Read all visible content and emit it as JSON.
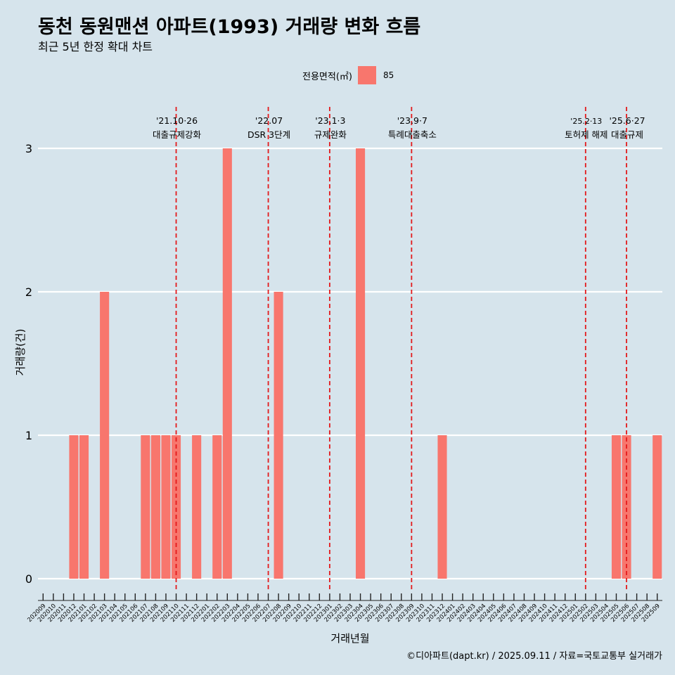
{
  "header": {
    "title": "동천 동원맨션 아파트(1993) 거래량 변화 흐름",
    "subtitle": "최근 5년 한정 확대 차트"
  },
  "legend": {
    "title": "전용면적(㎡)",
    "entry": "85"
  },
  "footer": {
    "credit": "©디아파트(dapt.kr) / 2025.09.11 / 자료=국토교통부 실거래가"
  },
  "colors": {
    "bar": "#f8766d",
    "event_line": "#e31a1c",
    "grid": "#ffffff",
    "background": "#d6e4ec"
  },
  "chart_data": {
    "type": "bar",
    "xlabel": "거래년월",
    "ylabel": "거래량(건)",
    "ylim": [
      0,
      3
    ],
    "yticks": [
      0,
      1,
      2,
      3
    ],
    "grid": true,
    "legend_position": "top",
    "categories": [
      "202009",
      "202010",
      "202011",
      "202012",
      "202101",
      "202102",
      "202103",
      "202104",
      "202105",
      "202106",
      "202107",
      "202108",
      "202109",
      "202110",
      "202111",
      "202112",
      "202201",
      "202202",
      "202203",
      "202204",
      "202205",
      "202206",
      "202207",
      "202208",
      "202209",
      "202210",
      "202211",
      "202212",
      "202301",
      "202302",
      "202303",
      "202304",
      "202305",
      "202306",
      "202307",
      "202308",
      "202309",
      "202310",
      "202311",
      "202312",
      "202401",
      "202402",
      "202403",
      "202404",
      "202405",
      "202406",
      "202407",
      "202408",
      "202409",
      "202410",
      "202411",
      "202412",
      "202501",
      "202502",
      "202503",
      "202504",
      "202505",
      "202506",
      "202507",
      "202508",
      "202509"
    ],
    "series": [
      {
        "name": "85",
        "values": [
          0,
          0,
          0,
          1,
          1,
          0,
          2,
          0,
          0,
          0,
          1,
          1,
          1,
          1,
          0,
          1,
          0,
          1,
          3,
          0,
          0,
          0,
          0,
          2,
          0,
          0,
          0,
          0,
          0,
          0,
          0,
          3,
          0,
          0,
          0,
          0,
          0,
          0,
          0,
          1,
          0,
          0,
          0,
          0,
          0,
          0,
          0,
          0,
          0,
          0,
          0,
          0,
          0,
          0,
          0,
          0,
          1,
          1,
          0,
          0,
          1
        ]
      }
    ],
    "events": [
      {
        "x": "202110",
        "date": "'21.10·26",
        "label": "대출규제강화"
      },
      {
        "x": "202207",
        "date": "'22.07",
        "label": "DSR 3단계"
      },
      {
        "x": "202301",
        "date": "'23.1·3",
        "label": "규제완화"
      },
      {
        "x": "202309",
        "date": "'23.9·7",
        "label": "특례대출축소"
      },
      {
        "x": "202502",
        "date": "'25.2·13",
        "label": "토허제 해제"
      },
      {
        "x": "202506",
        "date": "'25.6·27",
        "label": "대출규제"
      }
    ]
  }
}
